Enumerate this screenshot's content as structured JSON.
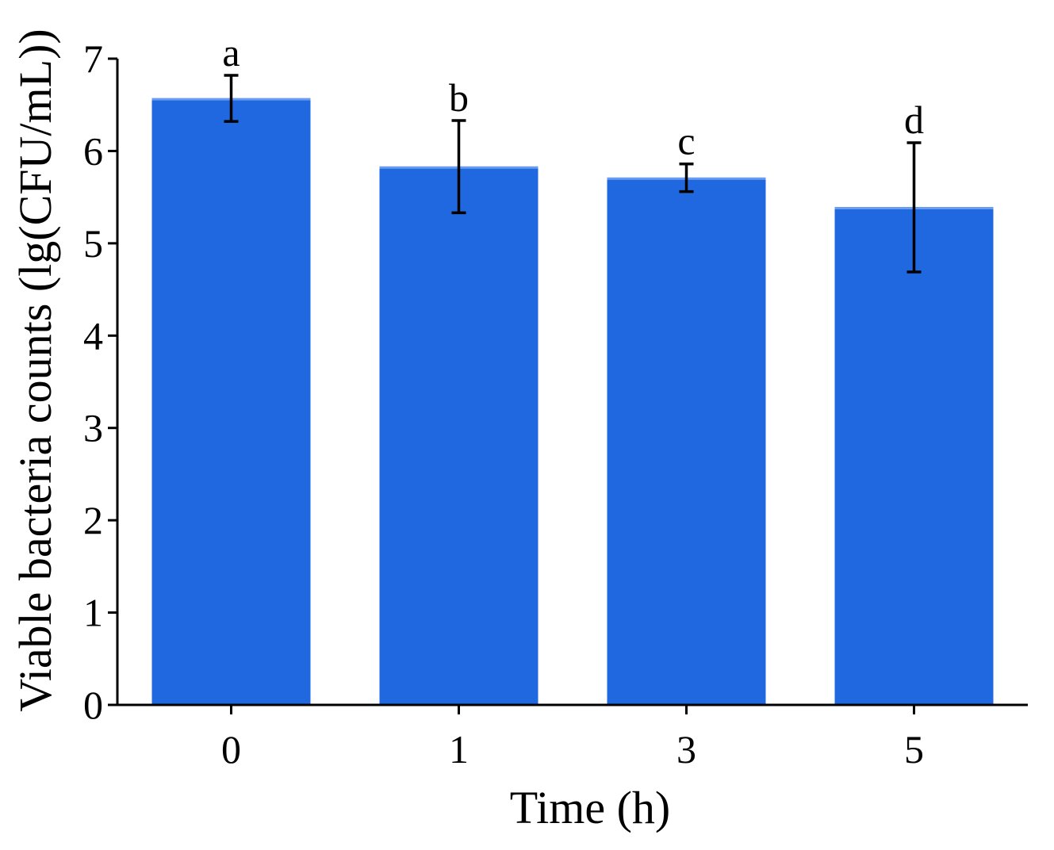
{
  "chart_data": {
    "type": "bar",
    "categories": [
      "0",
      "1",
      "3",
      "5"
    ],
    "values": [
      6.57,
      5.83,
      5.71,
      5.39
    ],
    "errors": [
      0.25,
      0.5,
      0.15,
      0.7
    ],
    "significance_labels": [
      "a",
      "b",
      "c",
      "d"
    ],
    "xlabel": "Time (h)",
    "ylabel": "Viable bacteria counts (lg(CFU/mL))",
    "ylim": [
      0,
      7
    ],
    "yticks": [
      "0",
      "1",
      "2",
      "3",
      "4",
      "5",
      "6",
      "7"
    ],
    "grid": false,
    "legend": "none",
    "colors": {
      "bar": "#2068E0",
      "bar_highlight": "#6A9CF0",
      "axis": "#000000"
    }
  }
}
